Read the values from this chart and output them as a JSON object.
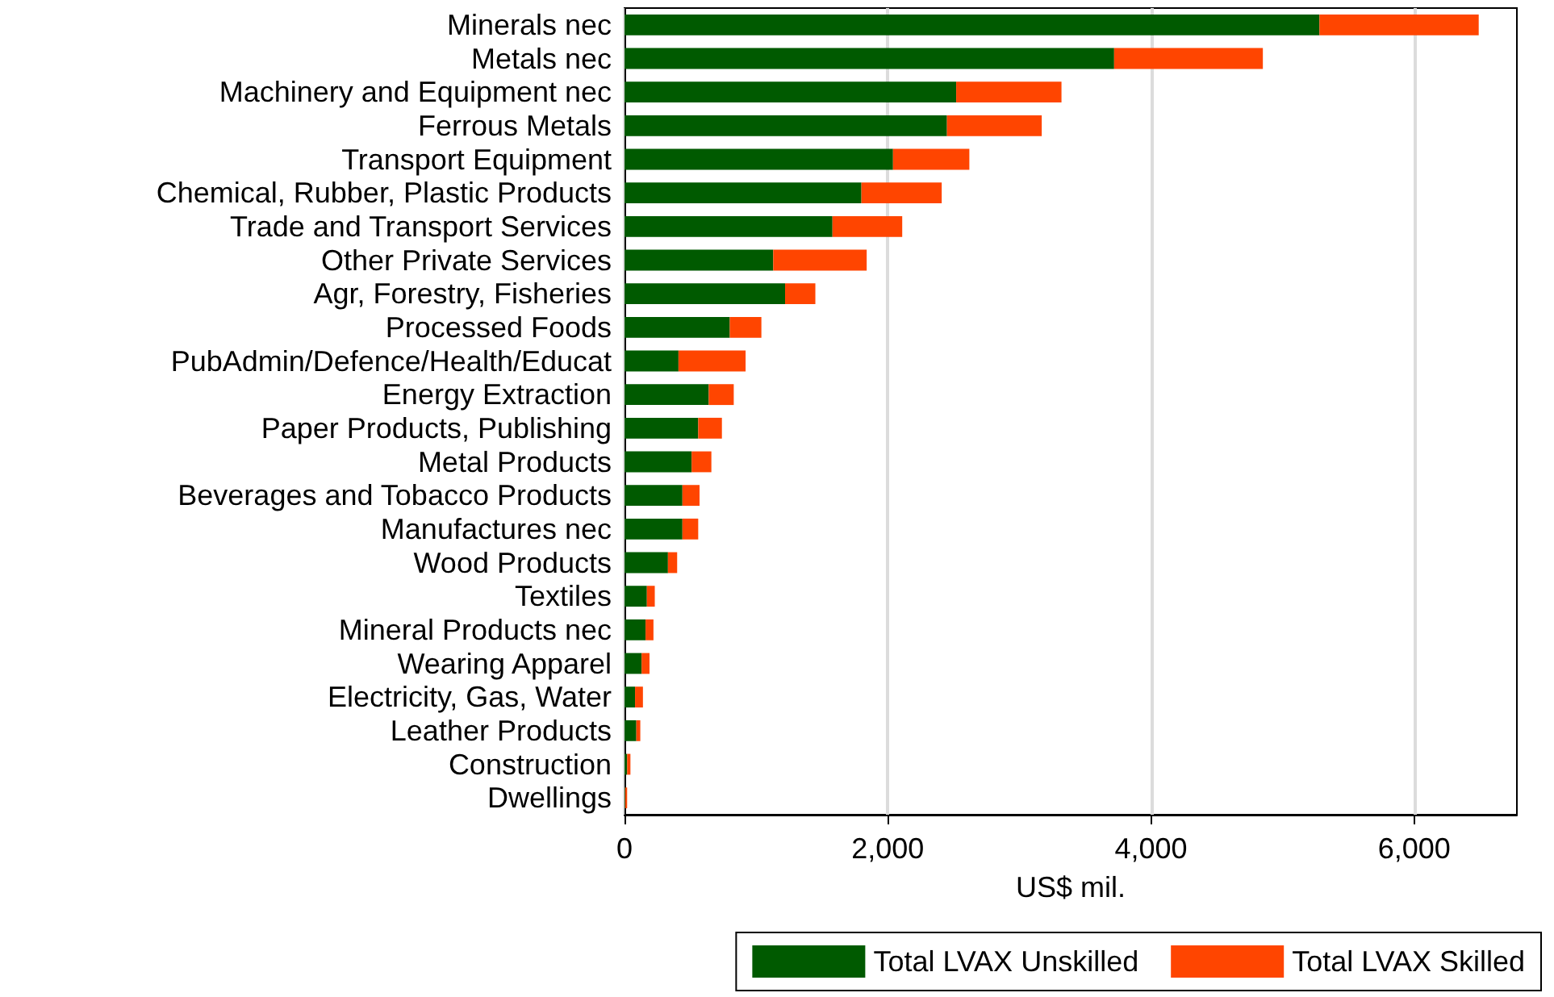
{
  "chart_data": {
    "type": "bar",
    "orientation": "horizontal",
    "stacked": true,
    "xlabel": "US$ mil.",
    "categories": [
      "Minerals nec",
      "Metals nec",
      "Machinery and Equipment nec",
      "Ferrous Metals",
      "Transport Equipment",
      "Chemical, Rubber, Plastic Products",
      "Trade and Transport Services",
      "Other Private Services",
      "Agr, Forestry, Fisheries",
      "Processed Foods",
      "PubAdmin/Defence/Health/Educat",
      "Energy Extraction",
      "Paper Products, Publishing",
      "Metal Products",
      "Beverages and Tobacco Products",
      "Manufactures nec",
      "Wood Products",
      "Textiles",
      "Mineral Products nec",
      "Wearing Apparel",
      "Electricity, Gas, Water",
      "Leather Products",
      "Construction",
      "Dwellings"
    ],
    "series": [
      {
        "name": "Total LVAX Unskilled",
        "color": "#005a00",
        "values": [
          5280,
          3720,
          2520,
          2450,
          2040,
          1800,
          1580,
          1130,
          1220,
          800,
          410,
          640,
          560,
          510,
          440,
          440,
          330,
          170,
          160,
          130,
          80,
          90,
          20,
          5
        ]
      },
      {
        "name": "Total LVAX Skilled",
        "color": "#ff4500",
        "values": [
          1210,
          1130,
          800,
          720,
          580,
          610,
          530,
          710,
          230,
          240,
          510,
          190,
          180,
          150,
          130,
          120,
          70,
          60,
          60,
          60,
          60,
          30,
          25,
          15
        ]
      }
    ],
    "xlim": [
      0,
      6780
    ],
    "xticks": [
      0,
      {
        "value": 2000,
        "label": "2,000"
      },
      {
        "value": 4000,
        "label": "4,000"
      },
      {
        "value": 6000,
        "label": "6,000"
      }
    ],
    "grid": "x",
    "legend": "bottom"
  }
}
